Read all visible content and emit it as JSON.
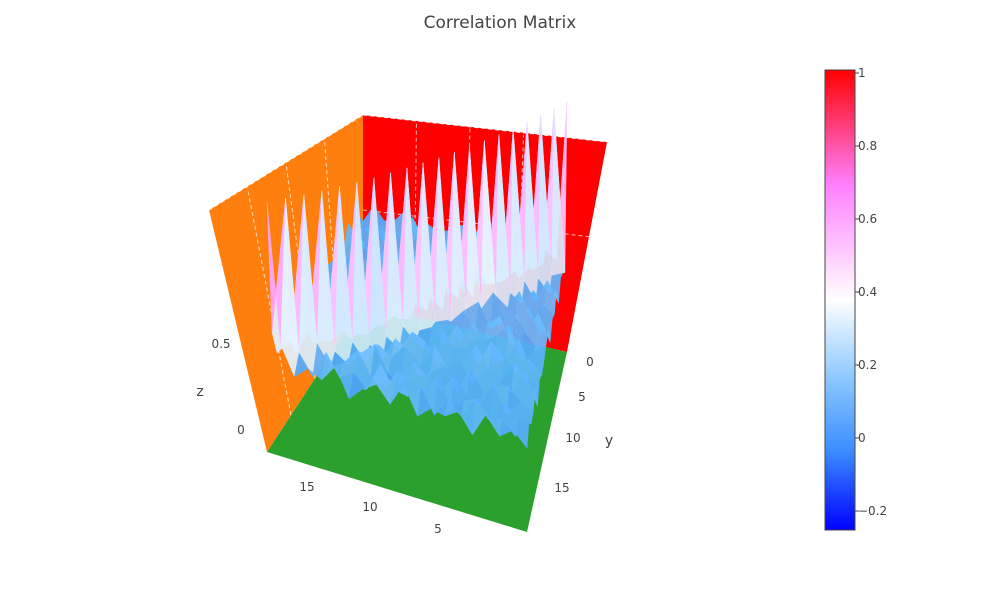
{
  "chart_data": {
    "type": "surface",
    "title": "Correlation Matrix",
    "x_axis": {
      "label": "",
      "ticks": [
        "5",
        "10",
        "15"
      ]
    },
    "y_axis": {
      "label": "y",
      "ticks": [
        "0",
        "5",
        "10",
        "15"
      ]
    },
    "z_axis": {
      "label": "z",
      "ticks": [
        "0",
        "0.5"
      ]
    },
    "colorscale": {
      "min": -0.2,
      "max": 1,
      "ticks": [
        "1",
        "0.8",
        "0.6",
        "0.4",
        "0.2",
        "0",
        "−0.2"
      ],
      "stops": [
        "#0000ff",
        "#5ab4ff",
        "#ffffff",
        "#ff80ff",
        "#ff0000"
      ]
    },
    "walls": {
      "back_right": "#ff0000",
      "back_left": "#ff7f0e",
      "floor": "#2ca02c"
    },
    "grid_size": 20,
    "z_range": [
      -0.2,
      1
    ],
    "values": [
      [
        1.0,
        0.21,
        0.05,
        0.12,
        0.08,
        0.18,
        0.02,
        0.1,
        0.15,
        0.06,
        0.2,
        0.04,
        0.11,
        0.09,
        0.14,
        0.03,
        0.17,
        0.07,
        0.13,
        0.05
      ],
      [
        0.21,
        1.0,
        0.14,
        0.03,
        0.19,
        0.07,
        0.12,
        0.05,
        0.22,
        0.1,
        0.08,
        0.16,
        0.02,
        0.13,
        0.06,
        0.18,
        0.09,
        0.11,
        0.04,
        0.15
      ],
      [
        0.05,
        0.14,
        1.0,
        0.17,
        0.06,
        0.11,
        0.2,
        0.08,
        0.03,
        0.15,
        0.12,
        0.07,
        0.19,
        0.04,
        0.1,
        0.13,
        0.02,
        0.16,
        0.09,
        0.08
      ],
      [
        0.12,
        0.03,
        0.17,
        1.0,
        0.1,
        0.05,
        0.14,
        0.21,
        0.07,
        0.02,
        0.18,
        0.11,
        0.06,
        0.16,
        0.08,
        0.04,
        0.19,
        0.03,
        0.12,
        0.1
      ],
      [
        0.08,
        0.19,
        0.06,
        0.1,
        1.0,
        0.13,
        0.04,
        0.16,
        0.11,
        0.2,
        0.05,
        0.09,
        0.15,
        0.02,
        0.18,
        0.07,
        0.12,
        0.14,
        0.06,
        0.17
      ],
      [
        0.18,
        0.07,
        0.11,
        0.05,
        0.13,
        1.0,
        0.09,
        0.03,
        0.17,
        0.12,
        0.06,
        0.2,
        0.08,
        0.14,
        0.04,
        0.16,
        0.1,
        0.05,
        0.19,
        0.02
      ],
      [
        0.02,
        0.12,
        0.2,
        0.14,
        0.04,
        0.09,
        1.0,
        0.11,
        0.06,
        0.18,
        0.15,
        0.03,
        0.13,
        0.07,
        0.21,
        0.09,
        0.05,
        0.17,
        0.08,
        0.12
      ],
      [
        0.1,
        0.05,
        0.08,
        0.21,
        0.16,
        0.03,
        0.11,
        1.0,
        0.14,
        0.07,
        0.04,
        0.19,
        0.1,
        0.12,
        0.05,
        0.2,
        0.13,
        0.06,
        0.16,
        0.09
      ],
      [
        0.15,
        0.22,
        0.03,
        0.07,
        0.11,
        0.17,
        0.06,
        0.14,
        1.0,
        0.09,
        0.13,
        0.05,
        0.18,
        0.1,
        0.16,
        0.02,
        0.08,
        0.2,
        0.04,
        0.11
      ],
      [
        0.06,
        0.1,
        0.15,
        0.02,
        0.2,
        0.12,
        0.18,
        0.07,
        0.09,
        1.0,
        0.11,
        0.14,
        0.04,
        0.17,
        0.08,
        0.13,
        0.21,
        0.03,
        0.1,
        0.15
      ],
      [
        0.2,
        0.08,
        0.12,
        0.18,
        0.05,
        0.06,
        0.15,
        0.04,
        0.13,
        0.11,
        1.0,
        0.08,
        0.16,
        0.06,
        0.12,
        0.19,
        0.04,
        0.14,
        0.07,
        0.18
      ],
      [
        0.04,
        0.16,
        0.07,
        0.11,
        0.09,
        0.2,
        0.03,
        0.19,
        0.05,
        0.14,
        0.08,
        1.0,
        0.12,
        0.18,
        0.05,
        0.1,
        0.15,
        0.09,
        0.21,
        0.06
      ],
      [
        0.11,
        0.02,
        0.19,
        0.06,
        0.15,
        0.08,
        0.13,
        0.1,
        0.18,
        0.04,
        0.16,
        0.12,
        1.0,
        0.09,
        0.2,
        0.06,
        0.11,
        0.17,
        0.03,
        0.14
      ],
      [
        0.09,
        0.13,
        0.04,
        0.16,
        0.02,
        0.14,
        0.07,
        0.12,
        0.1,
        0.17,
        0.06,
        0.18,
        0.09,
        1.0,
        0.13,
        0.08,
        0.19,
        0.05,
        0.15,
        0.11
      ],
      [
        0.14,
        0.06,
        0.1,
        0.08,
        0.18,
        0.04,
        0.21,
        0.05,
        0.16,
        0.08,
        0.12,
        0.05,
        0.2,
        0.13,
        1.0,
        0.11,
        0.07,
        0.16,
        0.09,
        0.19
      ],
      [
        0.03,
        0.18,
        0.13,
        0.04,
        0.07,
        0.16,
        0.09,
        0.2,
        0.02,
        0.13,
        0.19,
        0.1,
        0.06,
        0.08,
        0.11,
        1.0,
        0.14,
        0.04,
        0.18,
        0.07
      ],
      [
        0.17,
        0.09,
        0.02,
        0.19,
        0.12,
        0.1,
        0.05,
        0.13,
        0.08,
        0.21,
        0.04,
        0.15,
        0.11,
        0.19,
        0.07,
        0.14,
        1.0,
        0.12,
        0.05,
        0.16
      ],
      [
        0.07,
        0.11,
        0.16,
        0.03,
        0.14,
        0.05,
        0.17,
        0.06,
        0.2,
        0.03,
        0.14,
        0.09,
        0.17,
        0.05,
        0.16,
        0.04,
        0.12,
        1.0,
        0.1,
        0.13
      ],
      [
        0.13,
        0.04,
        0.09,
        0.12,
        0.06,
        0.19,
        0.08,
        0.16,
        0.04,
        0.1,
        0.07,
        0.21,
        0.03,
        0.15,
        0.09,
        0.18,
        0.05,
        0.1,
        1.0,
        0.08
      ],
      [
        0.05,
        0.15,
        0.08,
        0.1,
        0.17,
        0.02,
        0.12,
        0.09,
        0.11,
        0.15,
        0.18,
        0.06,
        0.14,
        0.11,
        0.19,
        0.07,
        0.16,
        0.13,
        0.08,
        1.0
      ]
    ]
  }
}
